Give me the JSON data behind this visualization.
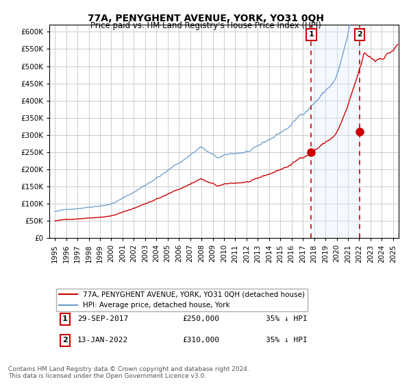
{
  "title": "77A, PENYGHENT AVENUE, YORK, YO31 0QH",
  "subtitle": "Price paid vs. HM Land Registry's House Price Index (HPI)",
  "ylabel": "",
  "xlabel": "",
  "ylim": [
    0,
    620000
  ],
  "yticks": [
    0,
    50000,
    100000,
    150000,
    200000,
    250000,
    300000,
    350000,
    400000,
    450000,
    500000,
    550000,
    600000
  ],
  "xlim_start": 1995.0,
  "xlim_end": 2025.5,
  "sale1_date": 2017.75,
  "sale1_price": 250000,
  "sale2_date": 2022.04,
  "sale2_price": 310000,
  "red_color": "#cc0000",
  "blue_color": "#6699cc",
  "shade_color": "#ddeeff",
  "grid_color": "#cccccc",
  "bg_color": "#ffffff",
  "legend_label_red": "77A, PENYGHENT AVENUE, YORK, YO31 0QH (detached house)",
  "legend_label_blue": "HPI: Average price, detached house, York",
  "table_row1": [
    "1",
    "29-SEP-2017",
    "£250,000",
    "35% ↓ HPI"
  ],
  "table_row2": [
    "2",
    "13-JAN-2022",
    "£310,000",
    "35% ↓ HPI"
  ],
  "footer": "Contains HM Land Registry data © Crown copyright and database right 2024.\nThis data is licensed under the Open Government Licence v3.0."
}
